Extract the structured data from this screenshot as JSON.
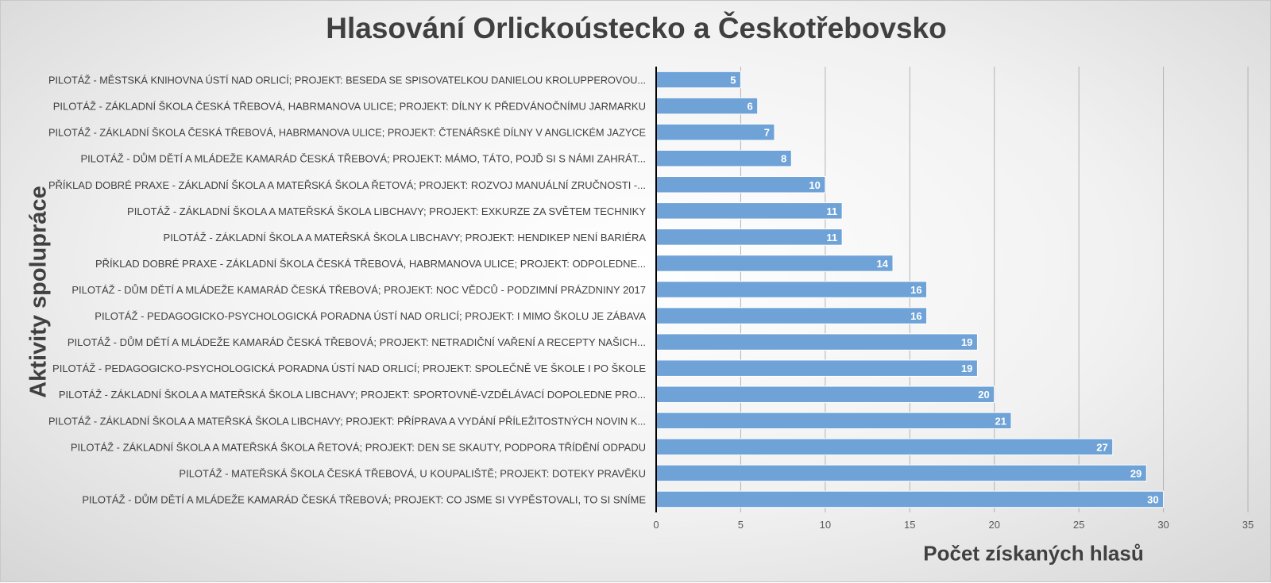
{
  "colors": {
    "bar": "#6fa3d8",
    "bar_stroke": "#ffffff",
    "gridline": "#b3b3b3",
    "axis": "#000000",
    "text": "#404040"
  },
  "chart_data": {
    "type": "bar",
    "orientation": "horizontal",
    "title": "Hlasování Orlickoústecko a Českotřebovsko",
    "xlabel": "Počet získaných hlasů",
    "ylabel": "Aktivity spolupráce",
    "xlim": [
      0,
      35
    ],
    "x_ticks": [
      "0",
      "5",
      "10",
      "15",
      "20",
      "25",
      "30",
      "35"
    ],
    "grid": true,
    "legend": "none",
    "categories": [
      "PILOTÁŽ - MĚSTSKÁ KNIHOVNA ÚSTÍ NAD ORLICÍ; PROJEKT: BESEDA SE SPISOVATELKOU DANIELOU KROLUPPEROVOU...",
      "PILOTÁŽ - ZÁKLADNÍ ŠKOLA ČESKÁ TŘEBOVÁ, HABRMANOVA ULICE; PROJEKT: DÍLNY K PŘEDVÁNOČNÍMU JARMARKU",
      "PILOTÁŽ - ZÁKLADNÍ ŠKOLA ČESKÁ TŘEBOVÁ, HABRMANOVA ULICE; PROJEKT: ČTENÁŘSKÉ DÍLNY V ANGLICKÉM JAZYCE",
      "PILOTÁŽ - DŮM DĚTÍ A MLÁDEŽE KAMARÁD ČESKÁ TŘEBOVÁ; PROJEKT: MÁMO, TÁTO, POJĎ SI S NÁMI ZAHRÁT...",
      "PŘÍKLAD DOBRÉ PRAXE - ZÁKLADNÍ ŠKOLA A MATEŘSKÁ ŠKOLA ŘETOVÁ; PROJEKT: ROZVOJ MANUÁLNÍ ZRUČNOSTI -...",
      "PILOTÁŽ - ZÁKLADNÍ ŠKOLA A MATEŘSKÁ ŠKOLA LIBCHAVY; PROJEKT: EXKURZE ZA SVĚTEM TECHNIKY",
      "PILOTÁŽ - ZÁKLADNÍ ŠKOLA A MATEŘSKÁ ŠKOLA LIBCHAVY; PROJEKT: HENDIKEP NENÍ BARIÉRA",
      "PŘÍKLAD DOBRÉ PRAXE - ZÁKLADNÍ ŠKOLA ČESKÁ TŘEBOVÁ, HABRMANOVA ULICE; PROJEKT: ODPOLEDNE...",
      "PILOTÁŽ - DŮM DĚTÍ A MLÁDEŽE KAMARÁD ČESKÁ TŘEBOVÁ; PROJEKT: NOC VĚDCŮ - PODZIMNÍ PRÁZDNINY 2017",
      "PILOTÁŽ - PEDAGOGICKO-PSYCHOLOGICKÁ PORADNA ÚSTÍ NAD ORLICÍ; PROJEKT: I MIMO ŠKOLU JE ZÁBAVA",
      "PILOTÁŽ - DŮM DĚTÍ A MLÁDEŽE KAMARÁD ČESKÁ TŘEBOVÁ; PROJEKT: NETRADIČNÍ VAŘENÍ A RECEPTY NAŠICH...",
      "PILOTÁŽ - PEDAGOGICKO-PSYCHOLOGICKÁ PORADNA ÚSTÍ NAD ORLICÍ; PROJEKT: SPOLEČNĚ VE ŠKOLE I PO ŠKOLE",
      "PILOTÁŽ - ZÁKLADNÍ ŠKOLA A MATEŘSKÁ ŠKOLA LIBCHAVY; PROJEKT: SPORTOVNĚ-VZDĚLÁVACÍ DOPOLEDNE PRO...",
      "PILOTÁŽ - ZÁKLADNÍ ŠKOLA A MATEŘSKÁ ŠKOLA LIBCHAVY; PROJEKT: PŘÍPRAVA A VYDÁNÍ PŘÍLEŽITOSTNÝCH NOVIN K...",
      "PILOTÁŽ - ZÁKLADNÍ ŠKOLA A MATEŘSKÁ ŠKOLA ŘETOVÁ; PROJEKT: DEN SE SKAUTY, PODPORA TŘÍDĚNÍ ODPADU",
      "PILOTÁŽ - MATEŘSKÁ ŠKOLA ČESKÁ TŘEBOVÁ, U KOUPALIŠTĚ; PROJEKT: DOTEKY PRAVĚKU",
      "PILOTÁŽ - DŮM DĚTÍ A MLÁDEŽE KAMARÁD ČESKÁ TŘEBOVÁ; PROJEKT: CO JSME SI VYPĚSTOVALI, TO SI SNÍME"
    ],
    "values": [
      5,
      6,
      7,
      8,
      10,
      11,
      11,
      14,
      16,
      16,
      19,
      19,
      20,
      21,
      27,
      29,
      30
    ]
  }
}
